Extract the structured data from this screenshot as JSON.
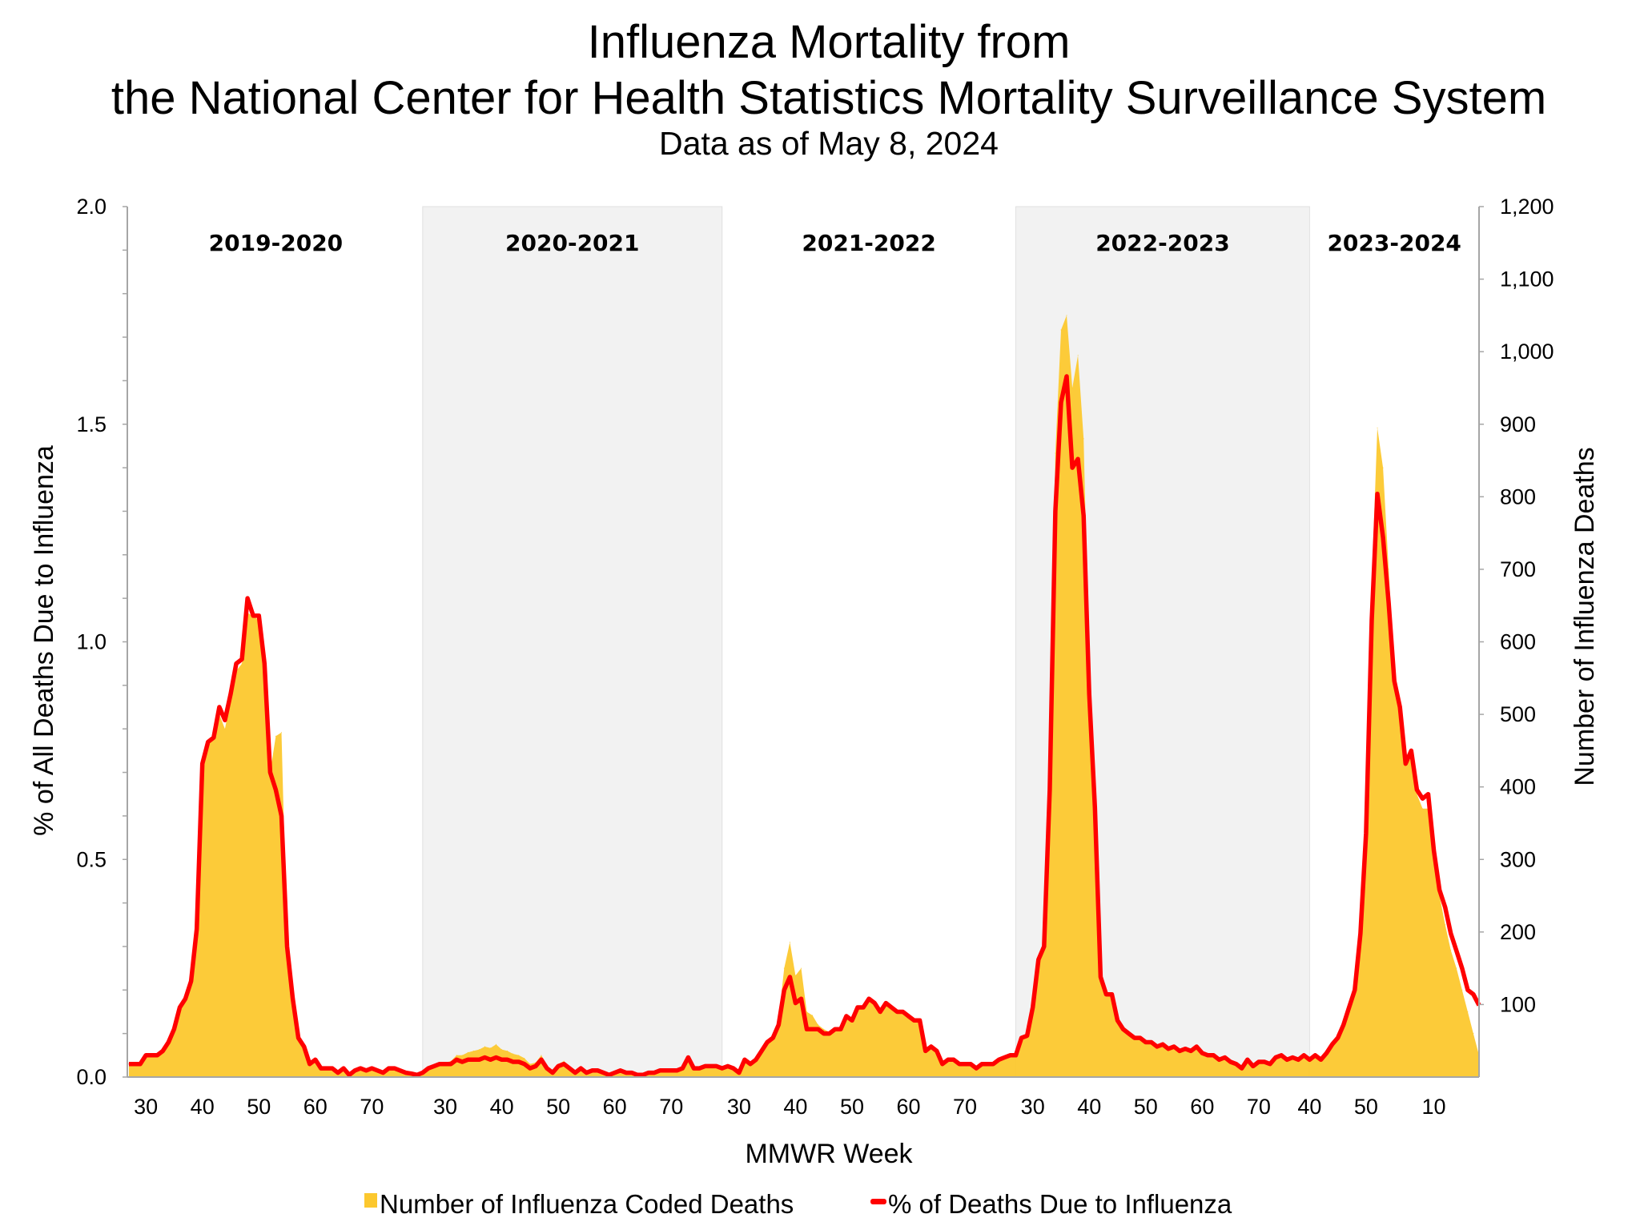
{
  "title_line1": "Influenza Mortality from",
  "title_line2": "the National Center for Health Statistics Mortality Surveillance System",
  "subtitle": "Data as of May 8, 2024",
  "chart_data": {
    "type": "area+line",
    "xlabel": "MMWR Week",
    "ylabel_left": "% of All Deaths Due to Influenza",
    "ylabel_right": "Number of Influenza Deaths",
    "ylim_left": [
      0,
      2.0
    ],
    "ylim_right": [
      0,
      1200
    ],
    "yticks_left": [
      "0.0",
      "0.5",
      "1.0",
      "1.5",
      "2.0"
    ],
    "yticks_right": [
      "100",
      "200",
      "300",
      "400",
      "500",
      "600",
      "700",
      "800",
      "900",
      "1,000",
      "1,100",
      "1,200"
    ],
    "grid": false,
    "legend_position": "bottom",
    "colors": {
      "deaths": "#FCC82E",
      "percent": "#FF0000",
      "shaded_season": "#F2F2F2",
      "axis": "#A6A6A6"
    },
    "series": [
      {
        "name": "Number of Influenza Coded Deaths",
        "type": "area",
        "axis": "right"
      },
      {
        "name": "% of Deaths Due to Influenza",
        "type": "line",
        "axis": "left"
      }
    ],
    "seasons": [
      {
        "label": "2019-2020",
        "shaded": false,
        "first_week": 40,
        "percent": [
          0.03,
          0.03,
          0.03,
          0.05,
          0.05,
          0.05,
          0.06,
          0.08,
          0.11,
          0.16,
          0.18,
          0.22,
          0.34,
          0.72,
          0.77,
          0.78,
          0.85,
          0.82,
          0.88,
          0.95,
          0.96,
          1.1,
          1.06,
          1.06,
          0.95,
          0.7,
          0.66,
          0.6,
          0.3,
          0.18,
          0.09,
          0.07,
          0.03,
          0.04,
          0.02,
          0.02,
          0.02,
          0.01,
          0.02,
          0.005,
          0.015,
          0.02,
          0.015,
          0.02,
          0.015,
          0.01,
          0.02,
          0.02,
          0.015,
          0.01,
          0.008,
          0.005
        ],
        "deaths": [
          18,
          18,
          18,
          30,
          30,
          30,
          36,
          48,
          66,
          96,
          108,
          132,
          204,
          430,
          460,
          468,
          500,
          480,
          520,
          560,
          570,
          640,
          635,
          630,
          560,
          420,
          470,
          475,
          180,
          108,
          54,
          42,
          18,
          24,
          12,
          12,
          12,
          6,
          12,
          3,
          9,
          12,
          9,
          12,
          9,
          6,
          12,
          12,
          9,
          6,
          5,
          3
        ]
      },
      {
        "label": "2020-2021",
        "shaded": true,
        "first_week": 40,
        "percent": [
          0.01,
          0.02,
          0.025,
          0.03,
          0.03,
          0.03,
          0.04,
          0.035,
          0.04,
          0.04,
          0.04,
          0.045,
          0.04,
          0.045,
          0.04,
          0.04,
          0.035,
          0.035,
          0.03,
          0.02,
          0.025,
          0.04,
          0.02,
          0.01,
          0.025,
          0.03,
          0.02,
          0.01,
          0.02,
          0.01,
          0.015,
          0.015,
          0.01,
          0.005,
          0.01,
          0.015,
          0.01,
          0.01,
          0.005,
          0.005,
          0.01,
          0.01,
          0.015,
          0.015,
          0.015,
          0.015,
          0.02,
          0.045,
          0.02,
          0.02,
          0.025,
          0.025,
          0.025
        ],
        "deaths": [
          7,
          13,
          16,
          20,
          20,
          22,
          30,
          30,
          34,
          36,
          38,
          42,
          40,
          45,
          38,
          36,
          32,
          30,
          26,
          18,
          20,
          30,
          16,
          8,
          18,
          22,
          14,
          8,
          14,
          8,
          10,
          10,
          7,
          4,
          7,
          10,
          7,
          7,
          4,
          4,
          7,
          7,
          10,
          10,
          10,
          10,
          13,
          28,
          13,
          13,
          16,
          16,
          16
        ]
      },
      {
        "label": "2021-2022",
        "shaded": false,
        "first_week": 40,
        "percent": [
          0.02,
          0.025,
          0.02,
          0.01,
          0.04,
          0.03,
          0.04,
          0.06,
          0.08,
          0.09,
          0.12,
          0.2,
          0.23,
          0.17,
          0.18,
          0.11,
          0.11,
          0.11,
          0.1,
          0.1,
          0.11,
          0.11,
          0.14,
          0.13,
          0.16,
          0.16,
          0.18,
          0.17,
          0.15,
          0.17,
          0.16,
          0.15,
          0.15,
          0.14,
          0.13,
          0.13,
          0.06,
          0.07,
          0.06,
          0.03,
          0.04,
          0.04,
          0.03,
          0.03,
          0.03,
          0.02,
          0.03,
          0.03,
          0.03,
          0.04,
          0.045,
          0.05
        ],
        "deaths": [
          12,
          15,
          12,
          6,
          24,
          18,
          24,
          36,
          50,
          56,
          80,
          150,
          186,
          140,
          150,
          90,
          85,
          72,
          66,
          62,
          64,
          66,
          84,
          80,
          96,
          96,
          108,
          102,
          90,
          102,
          96,
          90,
          90,
          84,
          78,
          78,
          36,
          42,
          36,
          18,
          24,
          24,
          18,
          18,
          18,
          12,
          18,
          18,
          18,
          24,
          27,
          30
        ]
      },
      {
        "label": "2022-2023",
        "shaded": true,
        "first_week": 40,
        "percent": [
          0.05,
          0.09,
          0.095,
          0.16,
          0.27,
          0.3,
          0.66,
          1.3,
          1.55,
          1.61,
          1.4,
          1.42,
          1.29,
          0.88,
          0.62,
          0.23,
          0.19,
          0.19,
          0.13,
          0.11,
          0.1,
          0.09,
          0.09,
          0.08,
          0.08,
          0.07,
          0.075,
          0.065,
          0.07,
          0.06,
          0.065,
          0.06,
          0.07,
          0.055,
          0.05,
          0.05,
          0.04,
          0.045,
          0.035,
          0.03,
          0.02,
          0.04,
          0.025,
          0.035,
          0.035,
          0.03,
          0.045,
          0.05,
          0.04,
          0.045,
          0.04,
          0.05
        ],
        "deaths": [
          30,
          54,
          57,
          96,
          162,
          180,
          400,
          860,
          1030,
          1050,
          950,
          995,
          880,
          560,
          380,
          140,
          114,
          114,
          78,
          66,
          60,
          54,
          54,
          48,
          48,
          42,
          45,
          39,
          42,
          36,
          39,
          36,
          42,
          33,
          30,
          30,
          24,
          27,
          21,
          18,
          12,
          24,
          15,
          21,
          21,
          18,
          27,
          30,
          24,
          27,
          24,
          30
        ]
      },
      {
        "label": "2023-2024",
        "shaded": false,
        "first_week": 40,
        "percent": [
          0.04,
          0.05,
          0.04,
          0.055,
          0.075,
          0.09,
          0.12,
          0.16,
          0.2,
          0.33,
          0.56,
          1.05,
          1.34,
          1.24,
          1.09,
          0.91,
          0.85,
          0.72,
          0.75,
          0.66,
          0.64,
          0.65,
          0.52,
          0.43,
          0.39,
          0.33,
          0.29,
          0.25,
          0.2,
          0.19,
          0.165
        ],
        "deaths": [
          24,
          30,
          24,
          33,
          45,
          54,
          72,
          96,
          125,
          200,
          350,
          680,
          895,
          840,
          700,
          560,
          500,
          430,
          440,
          390,
          370,
          370,
          300,
          250,
          210,
          175,
          150,
          120,
          90,
          60,
          30
        ]
      }
    ]
  }
}
